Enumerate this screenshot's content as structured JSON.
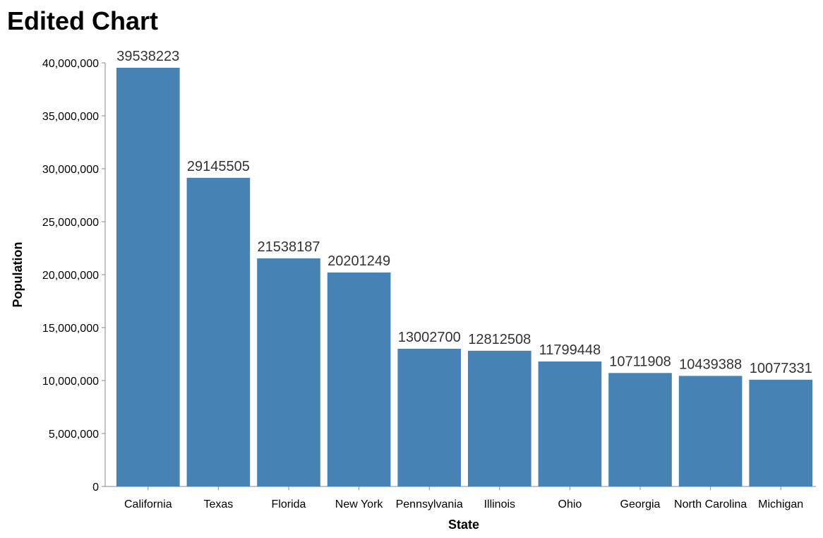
{
  "chart_data": {
    "type": "bar",
    "title": "Edited Chart",
    "xlabel": "State",
    "ylabel": "Population",
    "ylim": [
      0,
      40000000
    ],
    "yticks": [
      0,
      5000000,
      10000000,
      15000000,
      20000000,
      25000000,
      30000000,
      35000000,
      40000000
    ],
    "ytick_labels": [
      "0",
      "5,000,000",
      "10,000,000",
      "15,000,000",
      "20,000,000",
      "25,000,000",
      "30,000,000",
      "35,000,000",
      "40,000,000"
    ],
    "categories": [
      "California",
      "Texas",
      "Florida",
      "New York",
      "Pennsylvania",
      "Illinois",
      "Ohio",
      "Georgia",
      "North Carolina",
      "Michigan"
    ],
    "values": [
      39538223,
      29145505,
      21538187,
      20201249,
      13002700,
      12812508,
      11799448,
      10711908,
      10439388,
      10077331
    ],
    "data_labels": [
      "39538223",
      "29145505",
      "21538187",
      "20201249",
      "13002700",
      "12812508",
      "11799448",
      "10711908",
      "10439388",
      "10077331"
    ],
    "bar_color": "#4682b4",
    "grid": false,
    "legend": "none"
  }
}
